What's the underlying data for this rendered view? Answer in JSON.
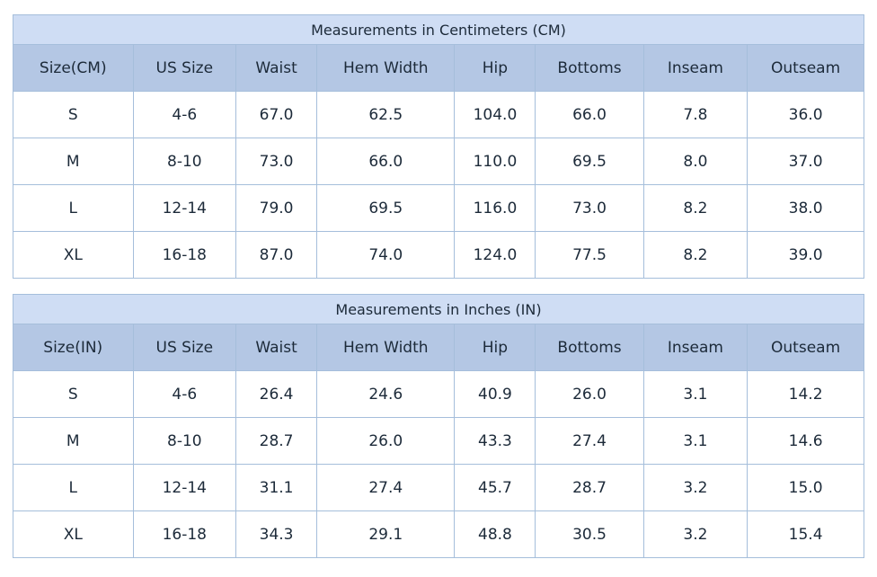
{
  "colors": {
    "title_bg": "#cfddf4",
    "header_bg": "#b4c7e4",
    "inner_border": "#a5bedb",
    "outer_border": "#7e8a97",
    "text": "#1c2a39",
    "row_bg": "#ffffff"
  },
  "chart_data": [
    {
      "type": "table",
      "title": "Measurements in Centimeters (CM)",
      "columns": [
        "Size(CM)",
        "US Size",
        "Waist",
        "Hem Width",
        "Hip",
        "Bottoms",
        "Inseam",
        "Outseam"
      ],
      "rows": [
        [
          "S",
          "4-6",
          "67.0",
          "62.5",
          "104.0",
          "66.0",
          "7.8",
          "36.0"
        ],
        [
          "M",
          "8-10",
          "73.0",
          "66.0",
          "110.0",
          "69.5",
          "8.0",
          "37.0"
        ],
        [
          "L",
          "12-14",
          "79.0",
          "69.5",
          "116.0",
          "73.0",
          "8.2",
          "38.0"
        ],
        [
          "XL",
          "16-18",
          "87.0",
          "74.0",
          "124.0",
          "77.5",
          "8.2",
          "39.0"
        ]
      ]
    },
    {
      "type": "table",
      "title": "Measurements in Inches (IN)",
      "columns": [
        "Size(IN)",
        "US Size",
        "Waist",
        "Hem Width",
        "Hip",
        "Bottoms",
        "Inseam",
        "Outseam"
      ],
      "rows": [
        [
          "S",
          "4-6",
          "26.4",
          "24.6",
          "40.9",
          "26.0",
          "3.1",
          "14.2"
        ],
        [
          "M",
          "8-10",
          "28.7",
          "26.0",
          "43.3",
          "27.4",
          "3.1",
          "14.6"
        ],
        [
          "L",
          "12-14",
          "31.1",
          "27.4",
          "45.7",
          "28.7",
          "3.2",
          "15.0"
        ],
        [
          "XL",
          "16-18",
          "34.3",
          "29.1",
          "48.8",
          "30.5",
          "3.2",
          "15.4"
        ]
      ]
    }
  ]
}
